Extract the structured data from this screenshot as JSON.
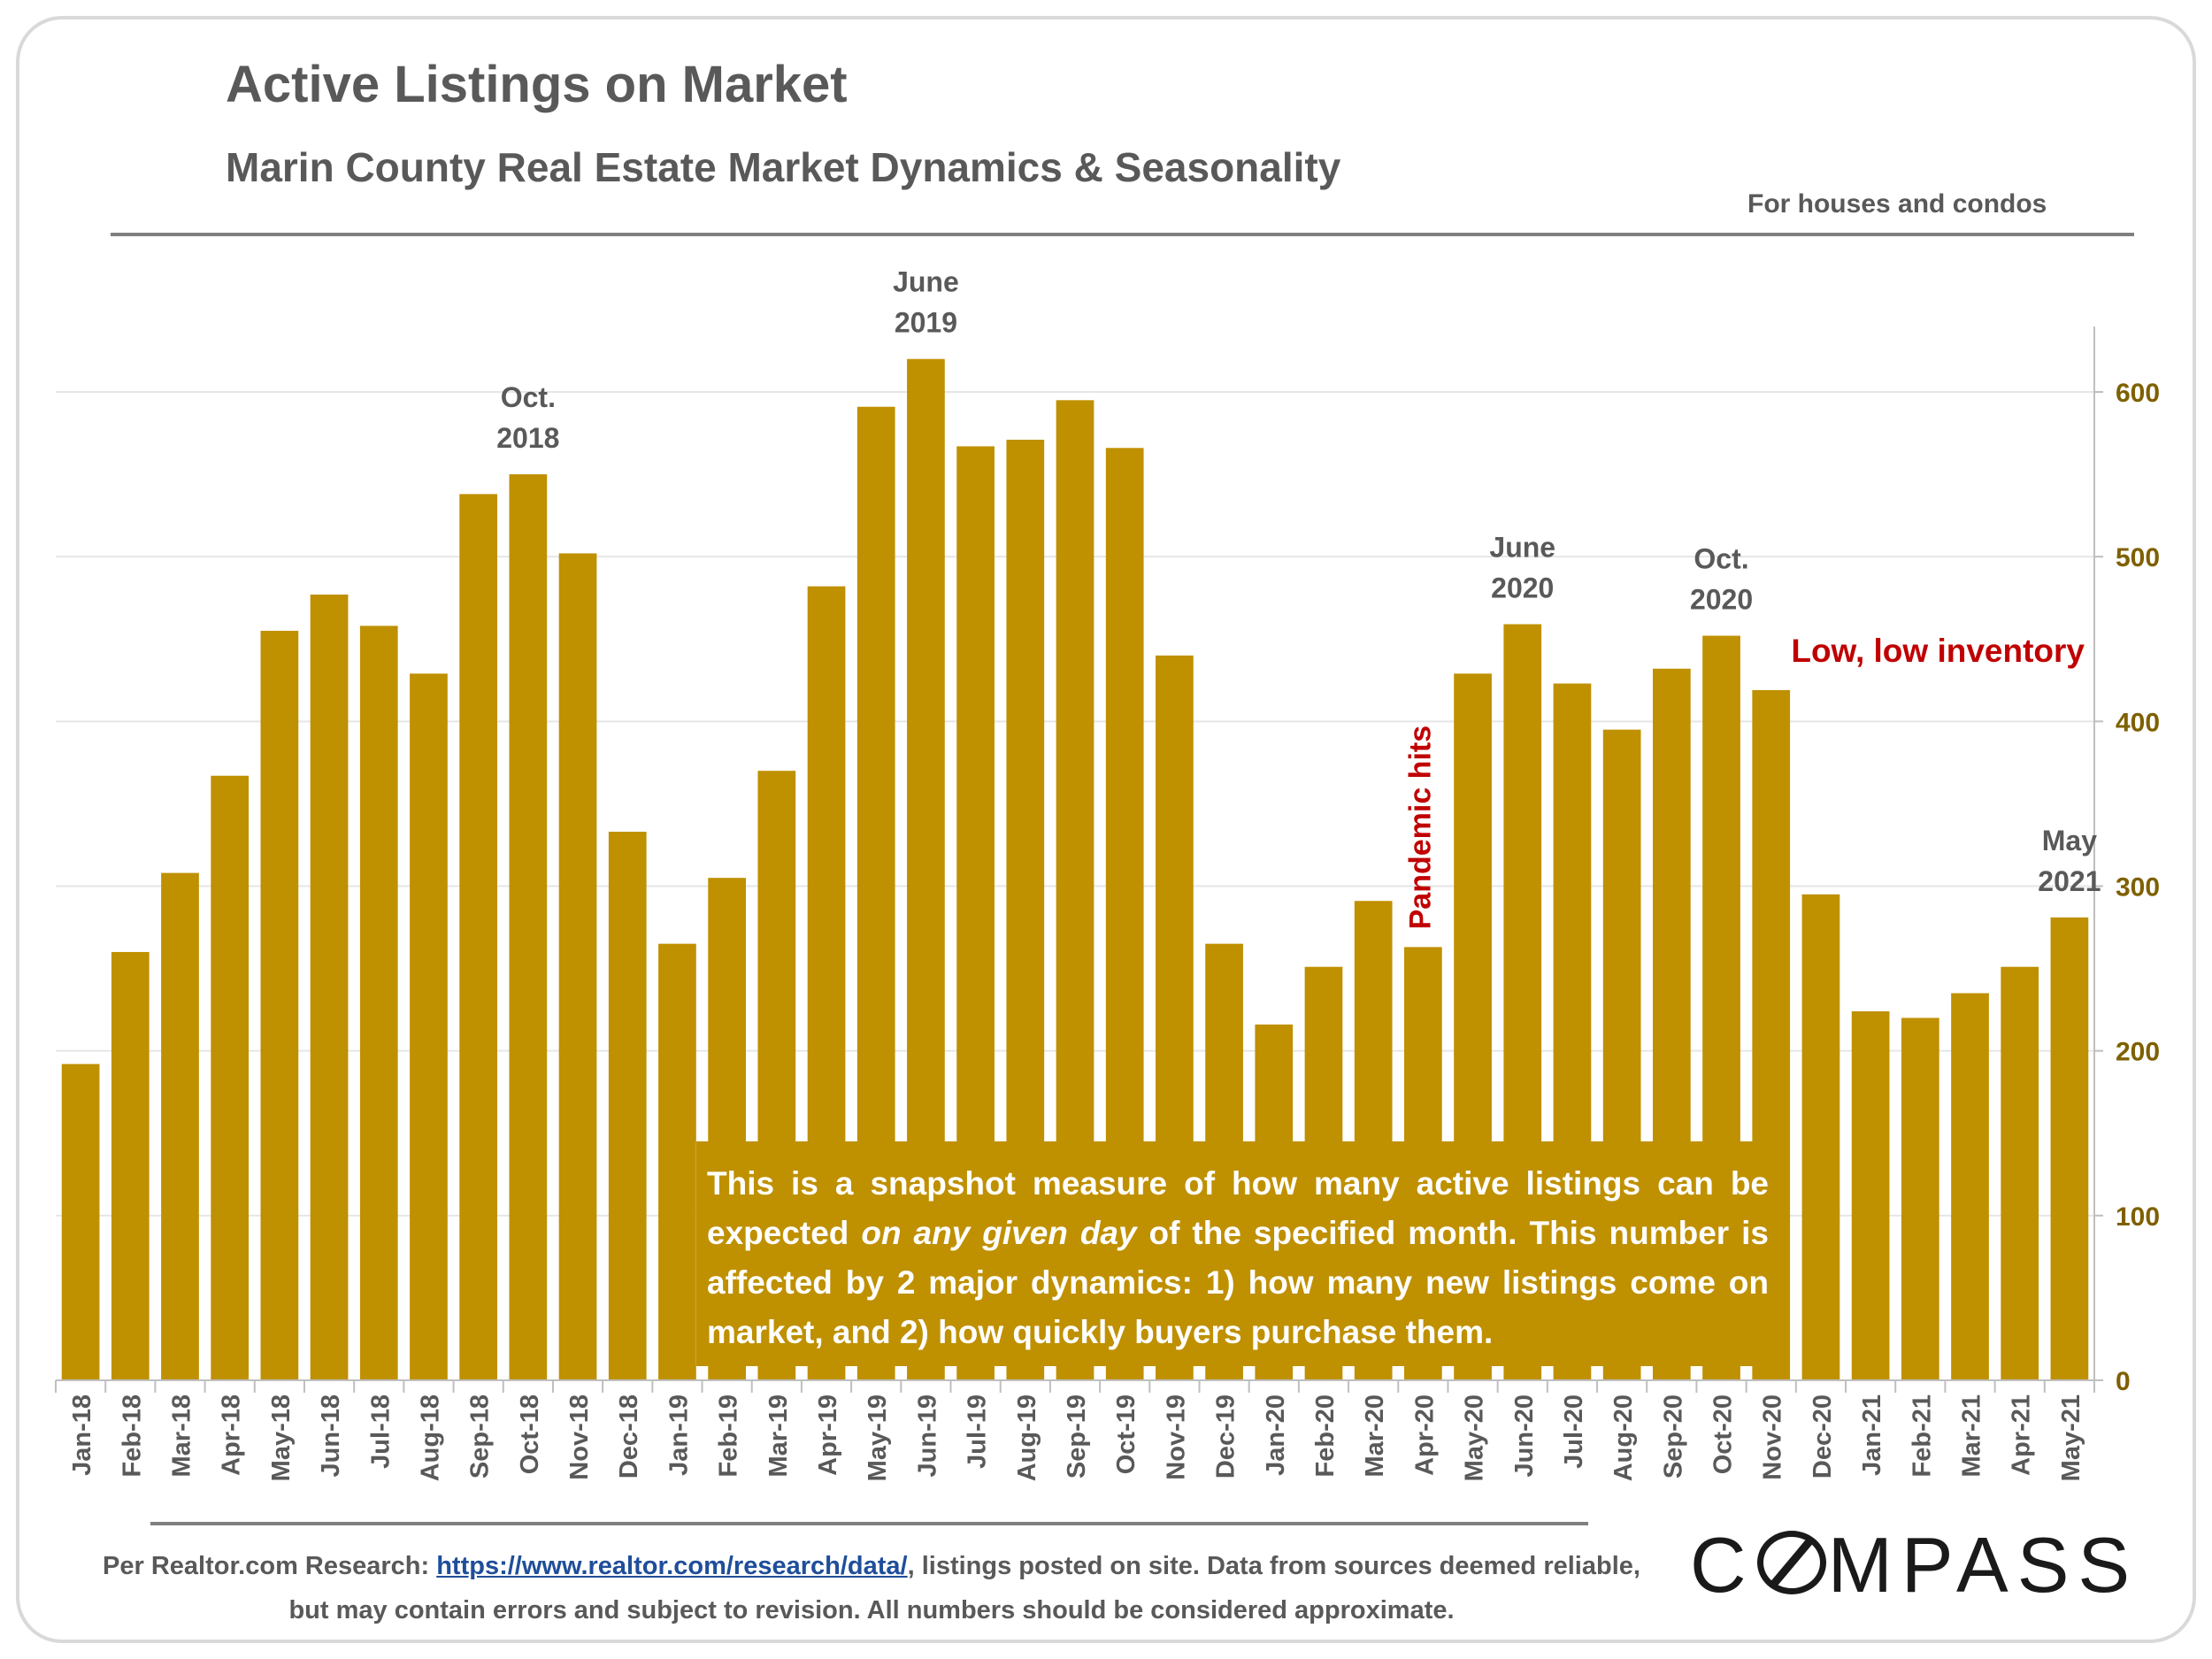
{
  "header": {
    "title": "Active Listings on Market",
    "subtitle": "Marin County Real Estate Market Dynamics & Seasonality",
    "scope_note": "For houses and condos"
  },
  "chart_data": {
    "type": "bar",
    "title": "Active Listings on Market",
    "subtitle": "Marin County Real Estate Market Dynamics & Seasonality",
    "xlabel": "",
    "ylabel": "",
    "ylim": [
      0,
      630
    ],
    "y_ticks": [
      0,
      100,
      200,
      300,
      400,
      500,
      600
    ],
    "y_axis_side": "right",
    "grid": true,
    "legend": "none",
    "bar_color": "#bf9000",
    "categories": [
      "Jan-18",
      "Feb-18",
      "Mar-18",
      "Apr-18",
      "May-18",
      "Jun-18",
      "Jul-18",
      "Aug-18",
      "Sep-18",
      "Oct-18",
      "Nov-18",
      "Dec-18",
      "Jan-19",
      "Feb-19",
      "Mar-19",
      "Apr-19",
      "May-19",
      "Jun-19",
      "Jul-19",
      "Aug-19",
      "Sep-19",
      "Oct-19",
      "Nov-19",
      "Dec-19",
      "Jan-20",
      "Feb-20",
      "Mar-20",
      "Apr-20",
      "May-20",
      "Jun-20",
      "Jul-20",
      "Aug-20",
      "Sep-20",
      "Oct-20",
      "Nov-20",
      "Dec-20",
      "Jan-21",
      "Feb-21",
      "Mar-21",
      "Apr-21",
      "May-21"
    ],
    "values": [
      192,
      260,
      308,
      367,
      455,
      477,
      458,
      429,
      538,
      550,
      502,
      333,
      265,
      305,
      370,
      482,
      591,
      620,
      567,
      571,
      595,
      566,
      440,
      265,
      216,
      251,
      291,
      263,
      429,
      459,
      423,
      395,
      432,
      452,
      419,
      295,
      224,
      220,
      235,
      251,
      281
    ],
    "annotations": [
      {
        "category": "Oct-18",
        "text": [
          "Oct.",
          "2018"
        ]
      },
      {
        "category": "Jun-19",
        "text": [
          "June",
          "2019"
        ]
      },
      {
        "category": "Jun-20",
        "text": [
          "June",
          "2020"
        ]
      },
      {
        "category": "Oct-20",
        "text": [
          "Oct.",
          "2020"
        ]
      },
      {
        "category": "May-21",
        "text": [
          "May",
          "2021"
        ]
      }
    ],
    "event_label": {
      "category": "Apr-20",
      "text": "Pandemic hits",
      "color": "#c00000"
    },
    "inventory_label": {
      "text": "Low, low inventory",
      "color": "#c00000"
    }
  },
  "note_box": {
    "part1": "This is a snapshot measure of how many active listings can be expected ",
    "emphasis": "on any given day",
    "part2": " of the specified month. This number is affected by 2 major dynamics: 1) how many new listings come on market, and 2) how quickly buyers purchase them."
  },
  "footer": {
    "prefix": "Per Realtor.com Research:  ",
    "link_text": "https://www.realtor.com/research/data/",
    "suffix": ", listings posted on site. Data from sources deemed reliable, but may contain errors and subject to revision. All numbers should be considered approximate."
  },
  "logo": {
    "left": "C",
    "right": "MPASS"
  },
  "colors": {
    "bar": "#bf9000",
    "axis_text": "#7f6000",
    "annotation_text": "#595959",
    "emphasis_red": "#c00000",
    "link": "#1f4e9a"
  }
}
